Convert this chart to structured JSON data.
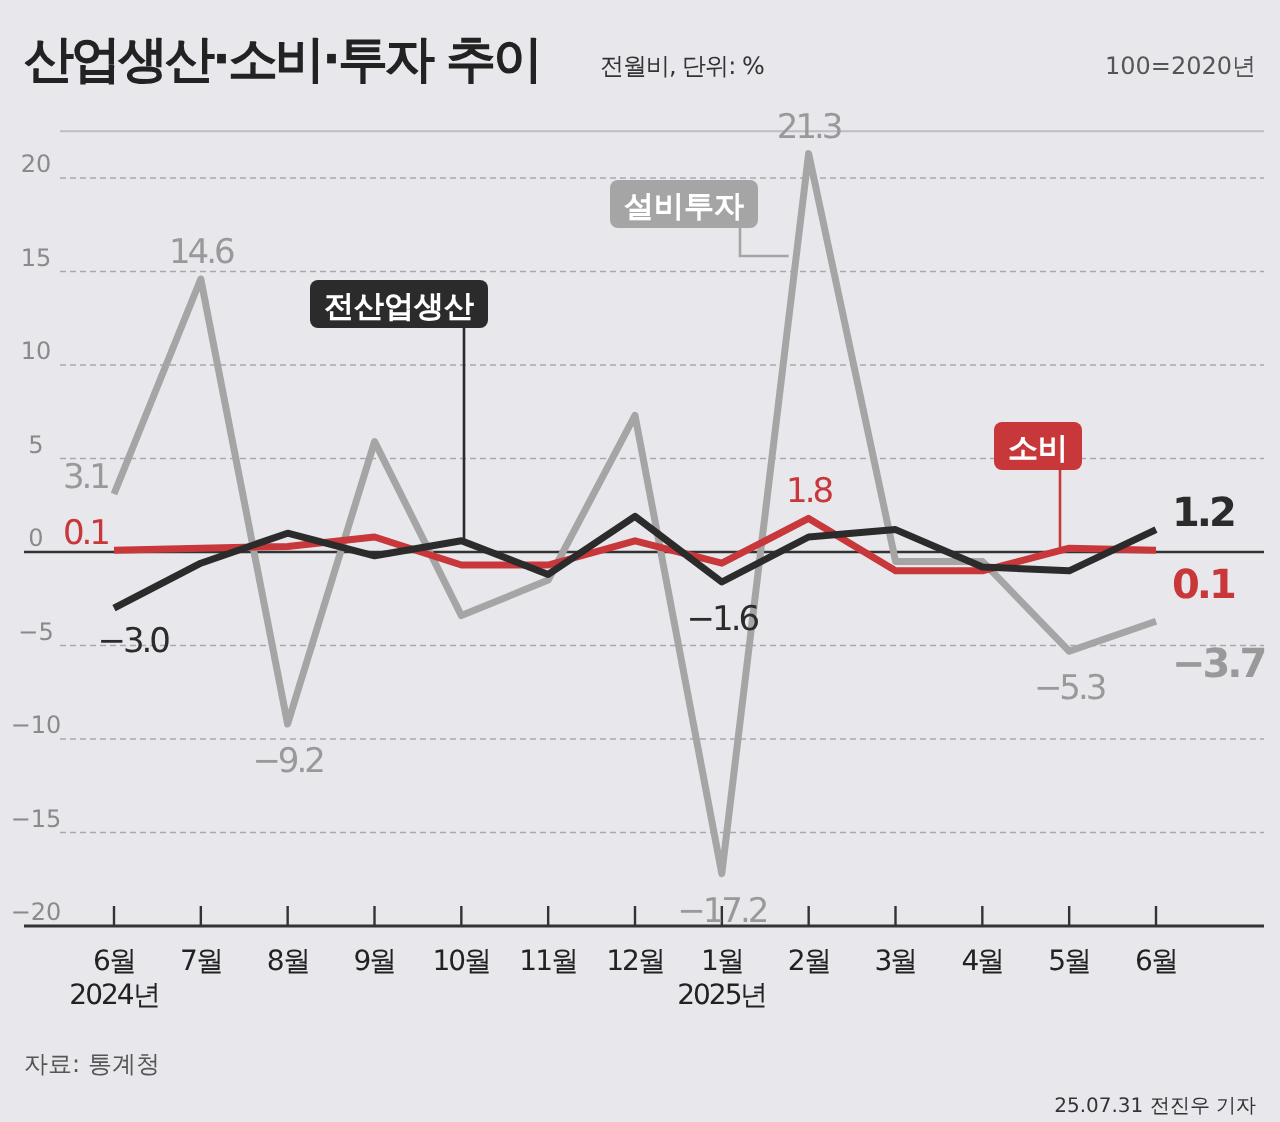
{
  "chart_data": {
    "type": "line",
    "title": "산업생산·소비·투자 추이",
    "subtitle": "전월비, 단위: %",
    "annotations": [
      "100=2020년",
      "자료: 통계청",
      "25.07.31 전진우 기자"
    ],
    "categories": [
      "6월\n2024년",
      "7월",
      "8월",
      "9월",
      "10월",
      "11월",
      "12월",
      "1월\n2025년",
      "2월",
      "3월",
      "4월",
      "5월",
      "6월"
    ],
    "series": [
      {
        "name": "설비투자",
        "color": "#a5a5a5",
        "values": [
          3.1,
          14.6,
          -9.2,
          5.9,
          -3.4,
          -1.5,
          7.3,
          -17.2,
          21.3,
          -0.5,
          -0.5,
          -5.3,
          -3.7
        ],
        "value_labels": [
          "3.1",
          "14.6",
          "−9.2",
          null,
          null,
          null,
          null,
          "−17.2",
          "21.3",
          null,
          null,
          "−5.3",
          "−3.7"
        ]
      },
      {
        "name": "소비",
        "color": "#c8373a",
        "values": [
          0.1,
          0.2,
          0.3,
          0.8,
          -0.7,
          -0.7,
          0.6,
          -0.6,
          1.8,
          -1.0,
          -1.0,
          0.2,
          0.1
        ],
        "value_labels": [
          "0.1",
          null,
          null,
          null,
          null,
          null,
          null,
          null,
          "1.8",
          null,
          null,
          null,
          "0.1"
        ]
      },
      {
        "name": "전산업생산",
        "color": "#2b2b2b",
        "values": [
          -3.0,
          -0.6,
          1.0,
          -0.2,
          0.6,
          -1.2,
          1.9,
          -1.6,
          0.8,
          1.2,
          -0.8,
          -1.0,
          1.2
        ],
        "value_labels": [
          "−3.0",
          null,
          null,
          null,
          null,
          null,
          null,
          "−1.6",
          null,
          null,
          null,
          null,
          "1.2"
        ]
      }
    ],
    "ylim": [
      -20,
      22.5
    ],
    "yticks": [
      -20,
      -15,
      -10,
      -5,
      0,
      5,
      10,
      15,
      20
    ],
    "grid": "y",
    "marker": "none",
    "line_style": "solid"
  }
}
